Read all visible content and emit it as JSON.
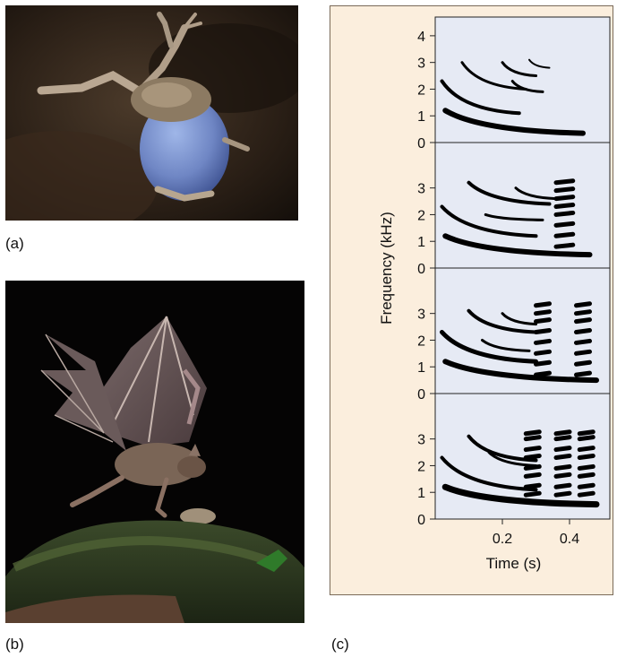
{
  "panels": {
    "a_label": "(a)",
    "b_label": "(b)",
    "c_label": "(c)"
  },
  "colors": {
    "figure_background": "#fbeedd",
    "plot_background": "#e6eaf4",
    "call_trace": "#000000"
  },
  "chart_data": {
    "type": "spectrogram",
    "xlabel": "Time (s)",
    "ylabel": "Frequency (kHz)",
    "x_ticks": [
      "0.2",
      "0.4"
    ],
    "x_tick_values": [
      0.2,
      0.4
    ],
    "y_ticks": [
      "0",
      "1",
      "2",
      "3",
      "4"
    ],
    "y_tick_values": [
      0,
      1,
      2,
      3,
      4
    ],
    "xlim": [
      0,
      0.52
    ],
    "ylim": [
      0,
      4.5
    ],
    "panels": [
      {
        "sweeps": [
          {
            "t0": 0.03,
            "t1": 0.44,
            "f0": 1.2,
            "f1": 0.35,
            "w": 6
          },
          {
            "t0": 0.02,
            "t1": 0.25,
            "f0": 2.3,
            "f1": 1.1,
            "w": 4
          },
          {
            "t0": 0.08,
            "t1": 0.27,
            "f0": 3.0,
            "f1": 2.0,
            "w": 3
          },
          {
            "t0": 0.2,
            "t1": 0.3,
            "f0": 3.0,
            "f1": 2.5,
            "w": 3
          },
          {
            "t0": 0.23,
            "t1": 0.32,
            "f0": 2.3,
            "f1": 1.9,
            "w": 3
          },
          {
            "t0": 0.28,
            "t1": 0.34,
            "f0": 3.1,
            "f1": 2.8,
            "w": 2
          }
        ],
        "chucks": []
      },
      {
        "sweeps": [
          {
            "t0": 0.03,
            "t1": 0.46,
            "f0": 1.2,
            "f1": 0.5,
            "w": 6
          },
          {
            "t0": 0.02,
            "t1": 0.3,
            "f0": 2.3,
            "f1": 1.2,
            "w": 4
          },
          {
            "t0": 0.1,
            "t1": 0.34,
            "f0": 3.2,
            "f1": 2.4,
            "w": 4
          },
          {
            "t0": 0.15,
            "t1": 0.32,
            "f0": 2.0,
            "f1": 1.8,
            "w": 3
          },
          {
            "t0": 0.24,
            "t1": 0.36,
            "f0": 3.0,
            "f1": 2.6,
            "w": 3
          }
        ],
        "chucks": [
          {
            "t0": 0.36,
            "t1": 0.41,
            "freqs": [
              0.8,
              1.2,
              1.6,
              2.0,
              2.3,
              2.6,
              2.9,
              3.2
            ]
          }
        ]
      },
      {
        "sweeps": [
          {
            "t0": 0.03,
            "t1": 0.48,
            "f0": 1.2,
            "f1": 0.5,
            "w": 6
          },
          {
            "t0": 0.02,
            "t1": 0.3,
            "f0": 2.3,
            "f1": 1.2,
            "w": 5
          },
          {
            "t0": 0.1,
            "t1": 0.3,
            "f0": 3.1,
            "f1": 2.3,
            "w": 4
          },
          {
            "t0": 0.14,
            "t1": 0.28,
            "f0": 2.0,
            "f1": 1.6,
            "w": 3
          },
          {
            "t0": 0.2,
            "t1": 0.3,
            "f0": 3.0,
            "f1": 2.6,
            "w": 3
          }
        ],
        "chucks": [
          {
            "t0": 0.3,
            "t1": 0.34,
            "freqs": [
              0.7,
              1.1,
              1.5,
              1.9,
              2.3,
              2.7,
              3.0,
              3.3
            ]
          },
          {
            "t0": 0.42,
            "t1": 0.46,
            "freqs": [
              0.7,
              1.1,
              1.5,
              1.9,
              2.3,
              2.7,
              3.0,
              3.3
            ]
          }
        ]
      },
      {
        "sweeps": [
          {
            "t0": 0.03,
            "t1": 0.48,
            "f0": 1.2,
            "f1": 0.55,
            "w": 7
          },
          {
            "t0": 0.02,
            "t1": 0.3,
            "f0": 2.3,
            "f1": 1.1,
            "w": 4
          },
          {
            "t0": 0.1,
            "t1": 0.3,
            "f0": 3.1,
            "f1": 2.2,
            "w": 4
          },
          {
            "t0": 0.16,
            "t1": 0.3,
            "f0": 2.5,
            "f1": 2.0,
            "w": 3
          }
        ],
        "chucks": [
          {
            "t0": 0.27,
            "t1": 0.31,
            "freqs": [
              0.9,
              1.2,
              1.6,
              1.9,
              2.3,
              2.6,
              3.0,
              3.2
            ]
          },
          {
            "t0": 0.36,
            "t1": 0.4,
            "freqs": [
              0.9,
              1.2,
              1.6,
              1.9,
              2.3,
              2.6,
              3.0,
              3.2
            ]
          },
          {
            "t0": 0.43,
            "t1": 0.47,
            "freqs": [
              0.9,
              1.2,
              1.6,
              1.9,
              2.3,
              2.6,
              3.0,
              3.2
            ]
          }
        ]
      }
    ]
  }
}
